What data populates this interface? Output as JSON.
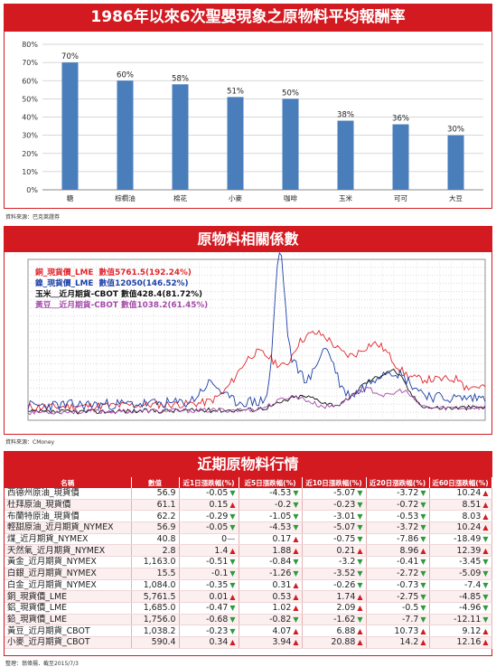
{
  "bar_title": "1986年以來6次聖嬰現象之原物料平均報酬率",
  "bar_source": "資料來源：巴克萊證券",
  "line_title": "原物料相關係數",
  "line_source": "資料來源：CMoney",
  "table_title": "近期原物料行情",
  "footer": "整理：翁偉揚．截至2015/7/3",
  "colors": {
    "accent": "#d41a21",
    "bar": "#4a7ebb",
    "up": "#d41a21",
    "down": "#2e9a3c"
  },
  "chart_data": [
    {
      "type": "bar",
      "categories": [
        "糖",
        "棕櫚油",
        "棉花",
        "小麥",
        "咖啡",
        "玉米",
        "可可",
        "大豆"
      ],
      "values": [
        70,
        60,
        58,
        51,
        50,
        38,
        36,
        30
      ],
      "data_labels": [
        "70%",
        "60%",
        "58%",
        "51%",
        "50%",
        "38%",
        "36%",
        "30%"
      ],
      "yticks": [
        "0%",
        "10%",
        "20%",
        "30%",
        "40%",
        "50%",
        "60%",
        "70%",
        "80%"
      ],
      "ylim": [
        0,
        80
      ],
      "grid": true
    },
    {
      "type": "line",
      "legend_placement": "top-left",
      "series": [
        {
          "name": "銅_現貨價_LME",
          "label": "數值5761.5(192.24%)",
          "color": "#e0262c"
        },
        {
          "name": "鎳_現貨價_LME",
          "label": "數值12050(146.52%)",
          "color": "#1c3fa6"
        },
        {
          "name": "玉米＿近月期貨-CBOT",
          "label": "數值428.4(81.72%)",
          "color": "#111111"
        },
        {
          "name": "黃豆＿近月期貨-CBOT",
          "label": "數值1038.2(61.45%)",
          "color": "#a44aa8"
        }
      ]
    }
  ],
  "table": {
    "headers": [
      "名稱",
      "數值",
      "近1日漲跌幅(%)",
      "近5日漲跌幅(%)",
      "近10日漲跌幅(%)",
      "近20日漲跌幅(%)",
      "近60日漲跌幅(%)"
    ],
    "rows": [
      {
        "name": "西德州原油_現貨價",
        "value": "56.9",
        "c1": "-0.05",
        "d1": "dn",
        "c5": "-4.53",
        "d5": "dn",
        "c10": "-5.07",
        "d10": "dn",
        "c20": "-3.72",
        "d20": "dn",
        "c60": "10.24",
        "d60": "up"
      },
      {
        "name": "杜拜原油_現貨價",
        "value": "61.1",
        "c1": "0.15",
        "d1": "up",
        "c5": "-0.2",
        "d5": "dn",
        "c10": "-0.23",
        "d10": "dn",
        "c20": "-0.72",
        "d20": "dn",
        "c60": "8.51",
        "d60": "up"
      },
      {
        "name": "布蘭特原油_現貨價",
        "value": "62.2",
        "c1": "-0.29",
        "d1": "dn",
        "c5": "-1.05",
        "d5": "dn",
        "c10": "-3.01",
        "d10": "dn",
        "c20": "-0.53",
        "d20": "dn",
        "c60": "8.03",
        "d60": "up"
      },
      {
        "name": "輕甜原油_近月期貨_NYMEX",
        "value": "56.9",
        "c1": "-0.05",
        "d1": "dn",
        "c5": "-4.53",
        "d5": "dn",
        "c10": "-5.07",
        "d10": "dn",
        "c20": "-3.72",
        "d20": "dn",
        "c60": "10.24",
        "d60": "up"
      },
      {
        "name": "煤_近月期貨_NYMEX",
        "value": "40.8",
        "c1": "0",
        "d1": "flat",
        "c5": "0.17",
        "d5": "up",
        "c10": "-0.75",
        "d10": "dn",
        "c20": "-7.86",
        "d20": "dn",
        "c60": "-18.49",
        "d60": "dn"
      },
      {
        "name": "天然氣_近月期貨_NYMEX",
        "value": "2.8",
        "c1": "1.4",
        "d1": "up",
        "c5": "1.88",
        "d5": "up",
        "c10": "0.21",
        "d10": "up",
        "c20": "8.96",
        "d20": "up",
        "c60": "12.39",
        "d60": "up"
      },
      {
        "name": "黃金_近月期貨_NYMEX",
        "value": "1,163.0",
        "c1": "-0.51",
        "d1": "dn",
        "c5": "-0.84",
        "d5": "dn",
        "c10": "-3.2",
        "d10": "dn",
        "c20": "-0.41",
        "d20": "dn",
        "c60": "-3.45",
        "d60": "dn"
      },
      {
        "name": "白銀_近月期貨_NYMEX",
        "value": "15.5",
        "c1": "-0.1",
        "d1": "dn",
        "c5": "-1.26",
        "d5": "dn",
        "c10": "-3.52",
        "d10": "dn",
        "c20": "-2.72",
        "d20": "dn",
        "c60": "-5.09",
        "d60": "dn"
      },
      {
        "name": "白金_近月期貨_NYMEX",
        "value": "1,084.0",
        "c1": "-0.35",
        "d1": "dn",
        "c5": "0.31",
        "d5": "up",
        "c10": "-0.26",
        "d10": "dn",
        "c20": "-0.73",
        "d20": "dn",
        "c60": "-7.4",
        "d60": "dn"
      },
      {
        "name": "銅_現貨價_LME",
        "value": "5,761.5",
        "c1": "0.01",
        "d1": "up",
        "c5": "0.53",
        "d5": "up",
        "c10": "1.74",
        "d10": "up",
        "c20": "-2.75",
        "d20": "dn",
        "c60": "-4.85",
        "d60": "dn"
      },
      {
        "name": "鋁_現貨價_LME",
        "value": "1,685.0",
        "c1": "-0.47",
        "d1": "dn",
        "c5": "1.02",
        "d5": "up",
        "c10": "2.09",
        "d10": "up",
        "c20": "-0.5",
        "d20": "dn",
        "c60": "-4.96",
        "d60": "dn"
      },
      {
        "name": "鉛_現貨價_LME",
        "value": "1,756.0",
        "c1": "-0.68",
        "d1": "dn",
        "c5": "-0.82",
        "d5": "dn",
        "c10": "-1.62",
        "d10": "dn",
        "c20": "-7.7",
        "d20": "dn",
        "c60": "-12.11",
        "d60": "dn"
      },
      {
        "name": "黃豆_近月期貨_CBOT",
        "value": "1,038.2",
        "c1": "-0.23",
        "d1": "dn",
        "c5": "4.07",
        "d5": "up",
        "c10": "6.88",
        "d10": "up",
        "c20": "10.73",
        "d20": "up",
        "c60": "9.12",
        "d60": "up"
      },
      {
        "name": "小麥_近月期貨_CBOT",
        "value": "590.4",
        "c1": "0.34",
        "d1": "up",
        "c5": "3.94",
        "d5": "up",
        "c10": "20.88",
        "d10": "up",
        "c20": "14.2",
        "d20": "up",
        "c60": "12.16",
        "d60": "up"
      }
    ]
  }
}
